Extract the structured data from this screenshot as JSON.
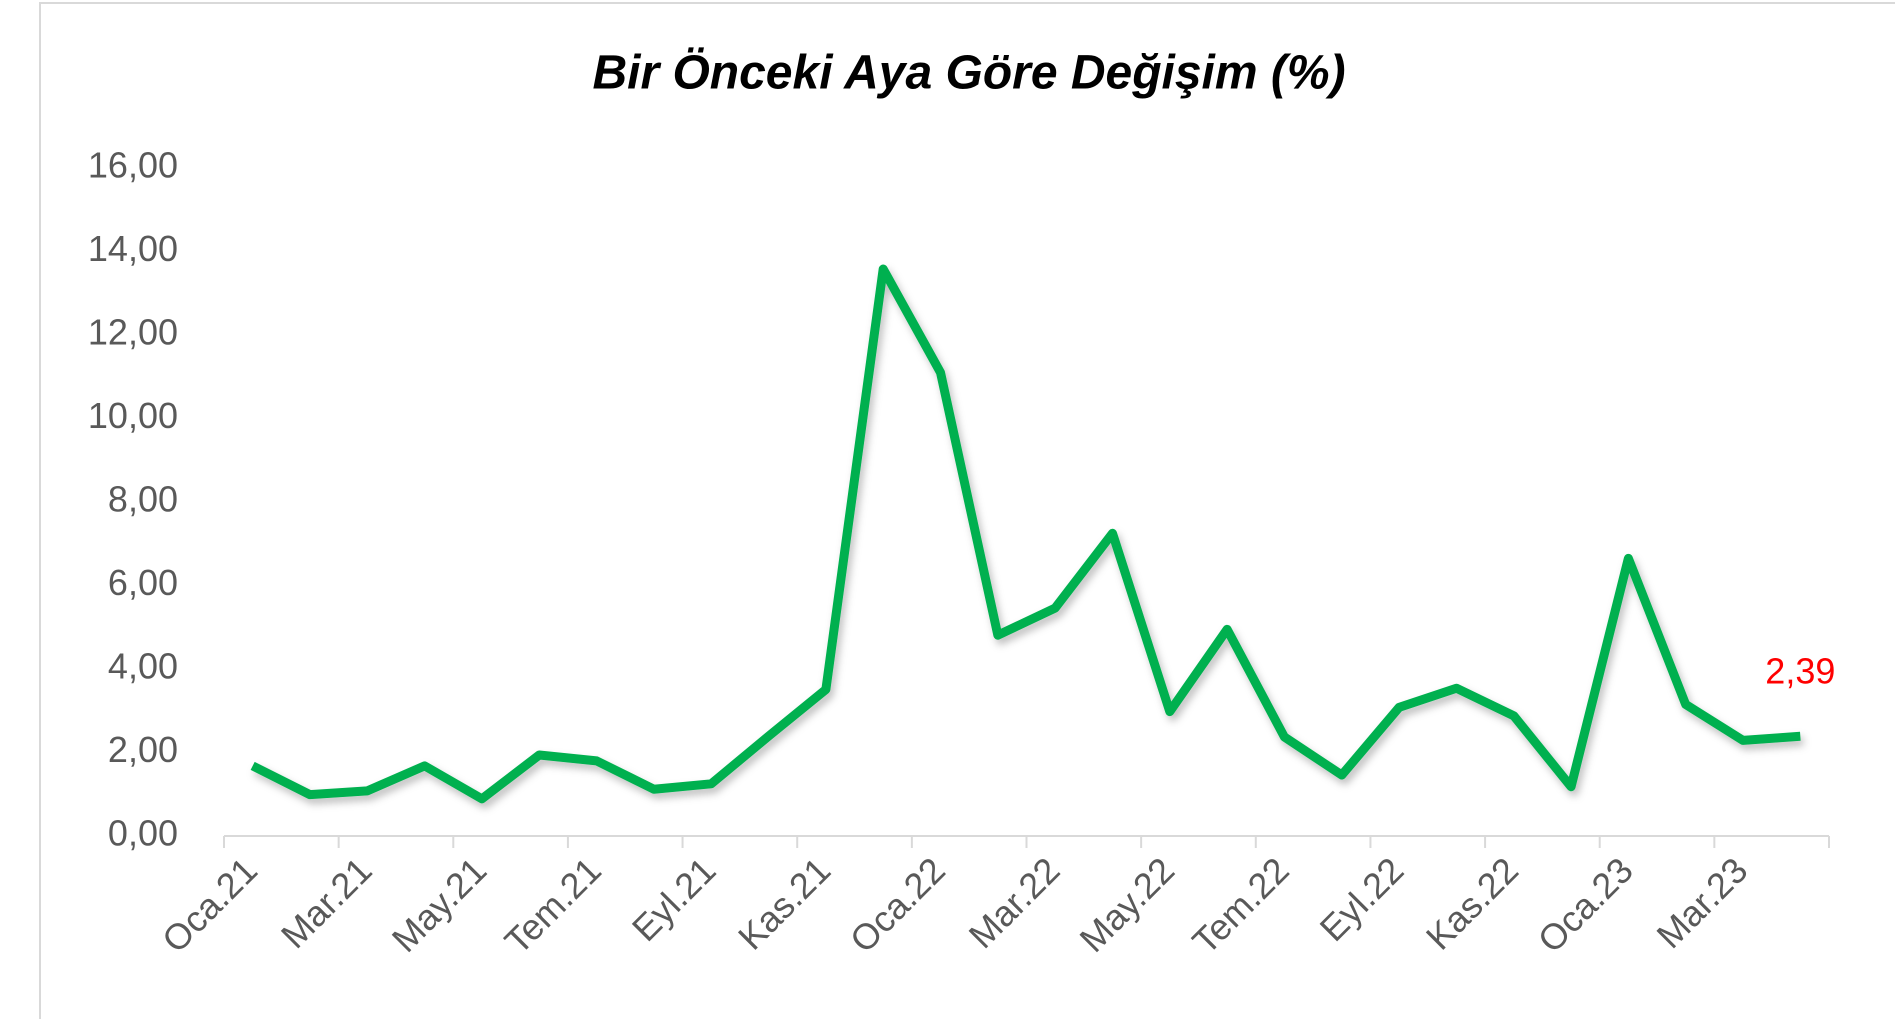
{
  "chart_data": {
    "type": "line",
    "title": "Bir Önceki Aya Göre Değişim (%)",
    "categories": [
      "Oca.21",
      null,
      "Mar.21",
      null,
      "May.21",
      null,
      "Tem.21",
      null,
      "Eyl.21",
      null,
      "Kas.21",
      null,
      "Oca.22",
      null,
      "Mar.22",
      null,
      "May.22",
      null,
      "Tem.22",
      null,
      "Eyl.22",
      null,
      "Kas.22",
      null,
      "Oca.23",
      null,
      "Mar.23",
      null
    ],
    "series": [
      {
        "color": "#00b050",
        "values": [
          1.68,
          0.99,
          1.08,
          1.68,
          0.89,
          1.94,
          1.8,
          1.12,
          1.25,
          2.39,
          3.51,
          13.58,
          11.1,
          4.81,
          5.46,
          7.25,
          2.98,
          4.95,
          2.37,
          1.46,
          3.08,
          3.54,
          2.88,
          1.18,
          6.65,
          3.15,
          2.29,
          2.39
        ],
        "value_labels": [
          null,
          null,
          null,
          null,
          null,
          null,
          null,
          null,
          null,
          null,
          null,
          null,
          null,
          null,
          null,
          null,
          null,
          null,
          null,
          null,
          null,
          null,
          null,
          null,
          null,
          null,
          null,
          "2,39"
        ],
        "value_label_color": "#ff0000"
      }
    ],
    "ylim": [
      0,
      16
    ],
    "yticks": [
      {
        "value": 0,
        "label": "0,00"
      },
      {
        "value": 2,
        "label": "2,00"
      },
      {
        "value": 4,
        "label": "4,00"
      },
      {
        "value": 6,
        "label": "6,00"
      },
      {
        "value": 8,
        "label": "8,00"
      },
      {
        "value": 10,
        "label": "10,00"
      },
      {
        "value": 12,
        "label": "12,00"
      },
      {
        "value": 14,
        "label": "14,00"
      },
      {
        "value": 16,
        "label": "16,00"
      }
    ],
    "grid": false
  }
}
